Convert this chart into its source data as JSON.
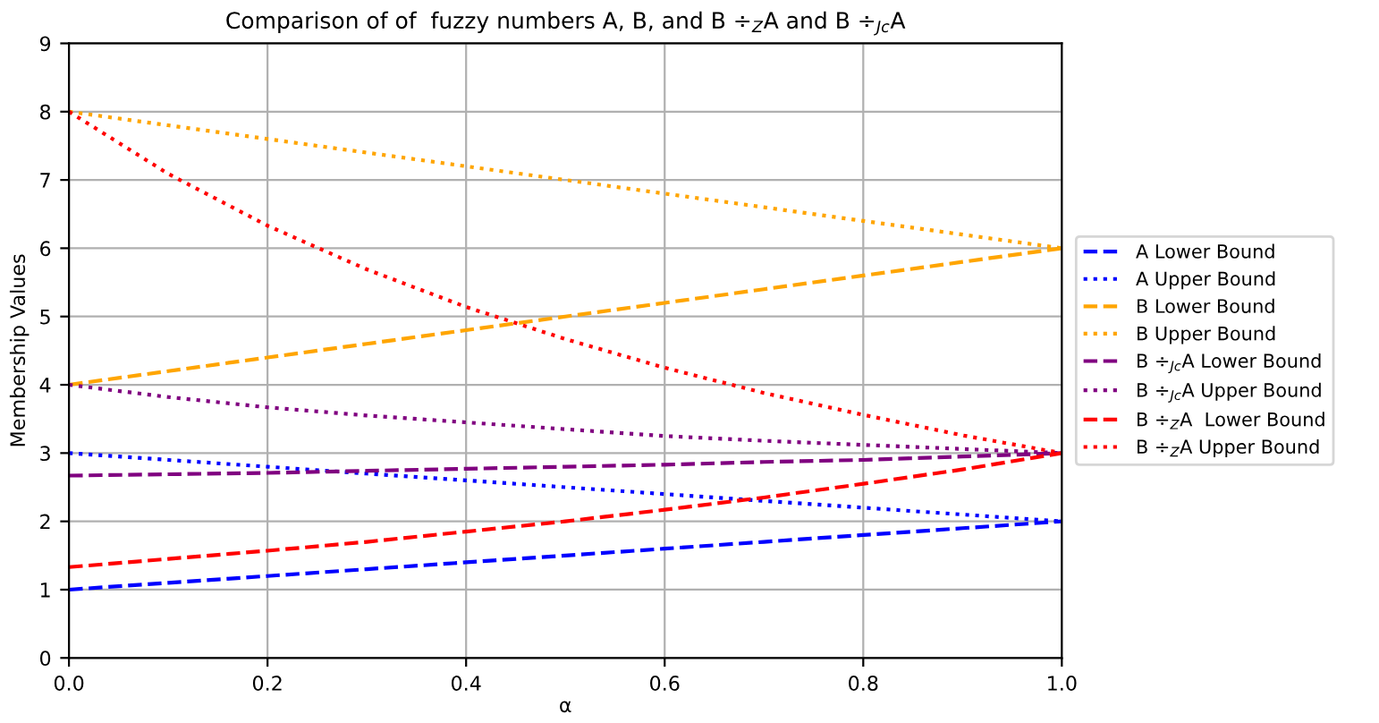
{
  "chart_data": {
    "type": "line",
    "title": "Comparison of of  fuzzy numbers A, B, and B ÷$_{Z}$A and B ÷$_{Jc}$A",
    "xlabel": "α",
    "ylabel": "Membership Values",
    "x": [
      0,
      0.1,
      0.2,
      0.3,
      0.4,
      0.5,
      0.6,
      0.7,
      0.8,
      0.9,
      1
    ],
    "xlim": [
      0,
      1
    ],
    "xticks": [
      {
        "value": 0,
        "label": "0.0"
      },
      0.2,
      0.4,
      0.6,
      0.8,
      {
        "value": 1,
        "label": "1.0"
      }
    ],
    "ylim": [
      0,
      9
    ],
    "yticks": [
      0,
      1,
      2,
      3,
      4,
      5,
      6,
      7,
      8,
      9
    ],
    "grid": true,
    "legend": "right",
    "series": [
      {
        "name": "A Lower Bound",
        "color": "#0000ff",
        "line_style": "dashed",
        "values": [
          1,
          1.1,
          1.2,
          1.3,
          1.4,
          1.5,
          1.6,
          1.7,
          1.8,
          1.9,
          2
        ]
      },
      {
        "name": "A Upper Bound",
        "color": "#0000ff",
        "line_style": "dotted",
        "values": [
          3,
          2.9,
          2.8,
          2.7,
          2.6,
          2.5,
          2.4,
          2.3,
          2.2,
          2.1,
          2
        ]
      },
      {
        "name": "B Lower Bound",
        "color": "#ffa500",
        "line_style": "dashed",
        "values": [
          4,
          4.2,
          4.4,
          4.6,
          4.8,
          5,
          5.2,
          5.4,
          5.6,
          5.8,
          6
        ]
      },
      {
        "name": "B Upper Bound",
        "color": "#ffa500",
        "line_style": "dotted",
        "values": [
          8,
          7.8,
          7.6,
          7.4,
          7.2,
          7,
          6.8,
          6.6,
          6.4,
          6.2,
          6
        ]
      },
      {
        "name": "B ÷$_{Jc}$A Lower Bound",
        "color": "#800080",
        "line_style": "dashed",
        "values": [
          2.67,
          2.69,
          2.71,
          2.74,
          2.77,
          2.8,
          2.83,
          2.87,
          2.9,
          2.95,
          3
        ]
      },
      {
        "name": "B ÷$_{Jc}$A Upper Bound",
        "color": "#800080",
        "line_style": "dotted",
        "values": [
          4,
          3.82,
          3.67,
          3.55,
          3.45,
          3.35,
          3.25,
          3.18,
          3.12,
          3.06,
          3
        ]
      },
      {
        "name": "B ÷$_{Z}$A  Lower Bound",
        "color": "#ff0000",
        "line_style": "dashed",
        "values": [
          1.33,
          1.45,
          1.57,
          1.7,
          1.85,
          2,
          2.17,
          2.35,
          2.55,
          2.76,
          3
        ]
      },
      {
        "name": "B ÷$_{Z}$A Upper Bound",
        "color": "#ff0000",
        "line_style": "dotted",
        "values": [
          8,
          7.09,
          6.33,
          5.69,
          5.14,
          4.67,
          4.25,
          3.88,
          3.56,
          3.26,
          3
        ]
      }
    ]
  }
}
